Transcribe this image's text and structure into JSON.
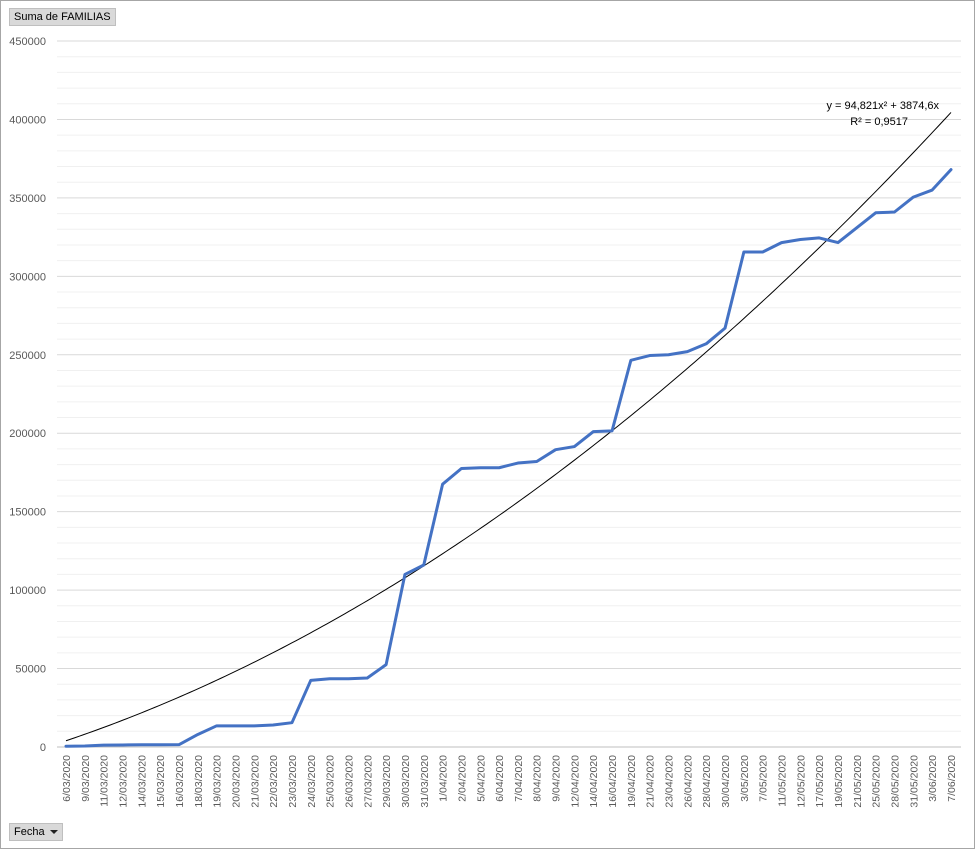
{
  "pivot": {
    "value_field": "Suma de FAMILIAS",
    "axis_field": "Fecha"
  },
  "colors": {
    "series": "#4472c4",
    "trend": "#000000",
    "grid": "#d9d9d9"
  },
  "chart_data": {
    "type": "line",
    "ylim": [
      0,
      450000
    ],
    "yticks": [
      0,
      50000,
      100000,
      150000,
      200000,
      250000,
      300000,
      350000,
      400000,
      450000
    ],
    "grid": true,
    "categories": [
      "6/03/2020",
      "9/03/2020",
      "11/03/2020",
      "12/03/2020",
      "14/03/2020",
      "15/03/2020",
      "16/03/2020",
      "18/03/2020",
      "19/03/2020",
      "20/03/2020",
      "21/03/2020",
      "22/03/2020",
      "23/03/2020",
      "24/03/2020",
      "25/03/2020",
      "26/03/2020",
      "27/03/2020",
      "29/03/2020",
      "30/03/2020",
      "31/03/2020",
      "1/04/2020",
      "2/04/2020",
      "5/04/2020",
      "6/04/2020",
      "7/04/2020",
      "8/04/2020",
      "9/04/2020",
      "12/04/2020",
      "14/04/2020",
      "16/04/2020",
      "19/04/2020",
      "21/04/2020",
      "23/04/2020",
      "26/04/2020",
      "28/04/2020",
      "30/04/2020",
      "3/05/2020",
      "7/05/2020",
      "11/05/2020",
      "12/05/2020",
      "17/05/2020",
      "19/05/2020",
      "21/05/2020",
      "25/05/2020",
      "28/05/2020",
      "31/05/2020",
      "3/06/2020",
      "7/06/2020"
    ],
    "series": [
      {
        "values": [
          500,
          600,
          1200,
          1300,
          1400,
          1400,
          1500,
          8000,
          13500,
          13500,
          13500,
          14000,
          15500,
          42500,
          43500,
          43500,
          44000,
          52500,
          110000,
          116000,
          167500,
          177500,
          178000,
          178000,
          181000,
          182000,
          189500,
          191500,
          201000,
          201500,
          246500,
          249500,
          250000,
          252000,
          257000,
          267000,
          315500,
          315500,
          321500,
          323500,
          324500,
          321500,
          331000,
          340500,
          341000,
          350500,
          355000,
          368000
        ]
      }
    ],
    "trendline": {
      "type": "poly2",
      "a": 94.821,
      "b": 3874.6,
      "equation": "y = 94,821x² + 3874,6x",
      "r2_label": "R² = 0,9517"
    }
  }
}
